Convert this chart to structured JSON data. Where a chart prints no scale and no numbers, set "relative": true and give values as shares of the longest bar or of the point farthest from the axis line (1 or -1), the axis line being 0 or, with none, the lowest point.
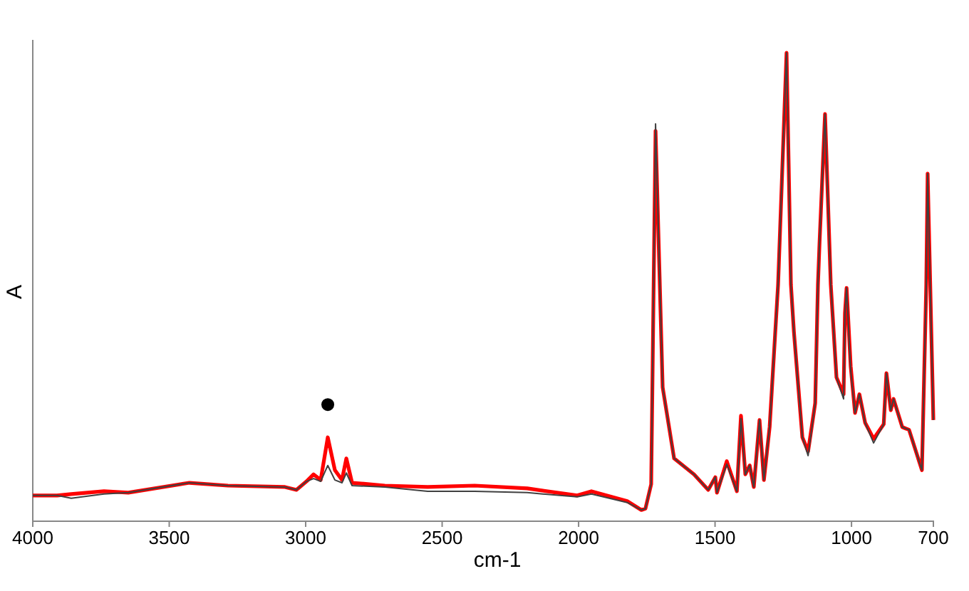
{
  "chart_data": {
    "type": "line",
    "relative": true,
    "xlabel": "cm-1",
    "ylabel": "A",
    "xlim": [
      4000,
      700
    ],
    "xticks": [
      4000,
      3500,
      3000,
      2500,
      2000,
      1500,
      1000,
      700
    ],
    "series": [
      {
        "color": "#404040",
        "x": [
          4000,
          3911,
          3859,
          3739,
          3650,
          3426,
          3285,
          3076,
          3034,
          2997,
          2971,
          2945,
          2919,
          2893,
          2867,
          2851,
          2830,
          2710,
          2553,
          2381,
          2188,
          2005,
          1953,
          1822,
          1770,
          1755,
          1734,
          1718,
          1692,
          1650,
          1577,
          1525,
          1499,
          1493,
          1457,
          1420,
          1405,
          1389,
          1373,
          1358,
          1337,
          1321,
          1300,
          1269,
          1238,
          1222,
          1211,
          1180,
          1159,
          1133,
          1123,
          1117,
          1097,
          1076,
          1055,
          1029,
          1024,
          1018,
          1003,
          987,
          971,
          950,
          919,
          882,
          872,
          856,
          846,
          814,
          789,
          742,
          726,
          721,
          700
        ],
        "values": [
          0.055,
          0.055,
          0.049,
          0.058,
          0.061,
          0.082,
          0.076,
          0.073,
          0.067,
          0.085,
          0.091,
          0.085,
          0.119,
          0.088,
          0.082,
          0.103,
          0.076,
          0.073,
          0.064,
          0.064,
          0.061,
          0.052,
          0.058,
          0.04,
          0.024,
          0.027,
          0.079,
          0.848,
          0.286,
          0.134,
          0.1,
          0.067,
          0.094,
          0.061,
          0.122,
          0.064,
          0.219,
          0.1,
          0.119,
          0.073,
          0.216,
          0.088,
          0.201,
          0.505,
          1.0,
          0.505,
          0.404,
          0.179,
          0.14,
          0.252,
          0.505,
          0.596,
          0.869,
          0.505,
          0.307,
          0.261,
          0.444,
          0.498,
          0.322,
          0.231,
          0.271,
          0.21,
          0.167,
          0.207,
          0.316,
          0.237,
          0.261,
          0.201,
          0.195,
          0.109,
          0.505,
          0.742,
          0.216
        ]
      },
      {
        "color": "#ff0000",
        "x": [
          4000,
          3911,
          3859,
          3739,
          3650,
          3426,
          3285,
          3076,
          3034,
          2997,
          2971,
          2945,
          2919,
          2893,
          2867,
          2851,
          2830,
          2710,
          2553,
          2381,
          2188,
          2005,
          1953,
          1822,
          1770,
          1755,
          1734,
          1718,
          1692,
          1650,
          1577,
          1525,
          1499,
          1493,
          1457,
          1420,
          1405,
          1389,
          1373,
          1358,
          1337,
          1321,
          1300,
          1269,
          1238,
          1222,
          1211,
          1180,
          1159,
          1133,
          1123,
          1117,
          1097,
          1076,
          1055,
          1029,
          1024,
          1018,
          1003,
          987,
          971,
          950,
          919,
          882,
          872,
          856,
          846,
          814,
          789,
          742,
          726,
          721,
          700
        ],
        "values": [
          0.055,
          0.055,
          0.058,
          0.064,
          0.061,
          0.082,
          0.076,
          0.073,
          0.067,
          0.085,
          0.1,
          0.088,
          0.179,
          0.109,
          0.088,
          0.134,
          0.082,
          0.076,
          0.073,
          0.076,
          0.07,
          0.055,
          0.064,
          0.043,
          0.024,
          0.027,
          0.079,
          0.833,
          0.286,
          0.134,
          0.1,
          0.067,
          0.094,
          0.061,
          0.128,
          0.064,
          0.225,
          0.1,
          0.119,
          0.073,
          0.216,
          0.088,
          0.201,
          0.505,
          1.0,
          0.505,
          0.404,
          0.179,
          0.149,
          0.252,
          0.505,
          0.596,
          0.869,
          0.505,
          0.307,
          0.271,
          0.444,
          0.498,
          0.331,
          0.231,
          0.271,
          0.21,
          0.176,
          0.207,
          0.316,
          0.237,
          0.261,
          0.201,
          0.195,
          0.109,
          0.505,
          0.742,
          0.216
        ]
      },
      {
        "type": "scatter",
        "color": "#000000",
        "x": [
          2919
        ],
        "values": [
          0.249
        ]
      }
    ]
  }
}
